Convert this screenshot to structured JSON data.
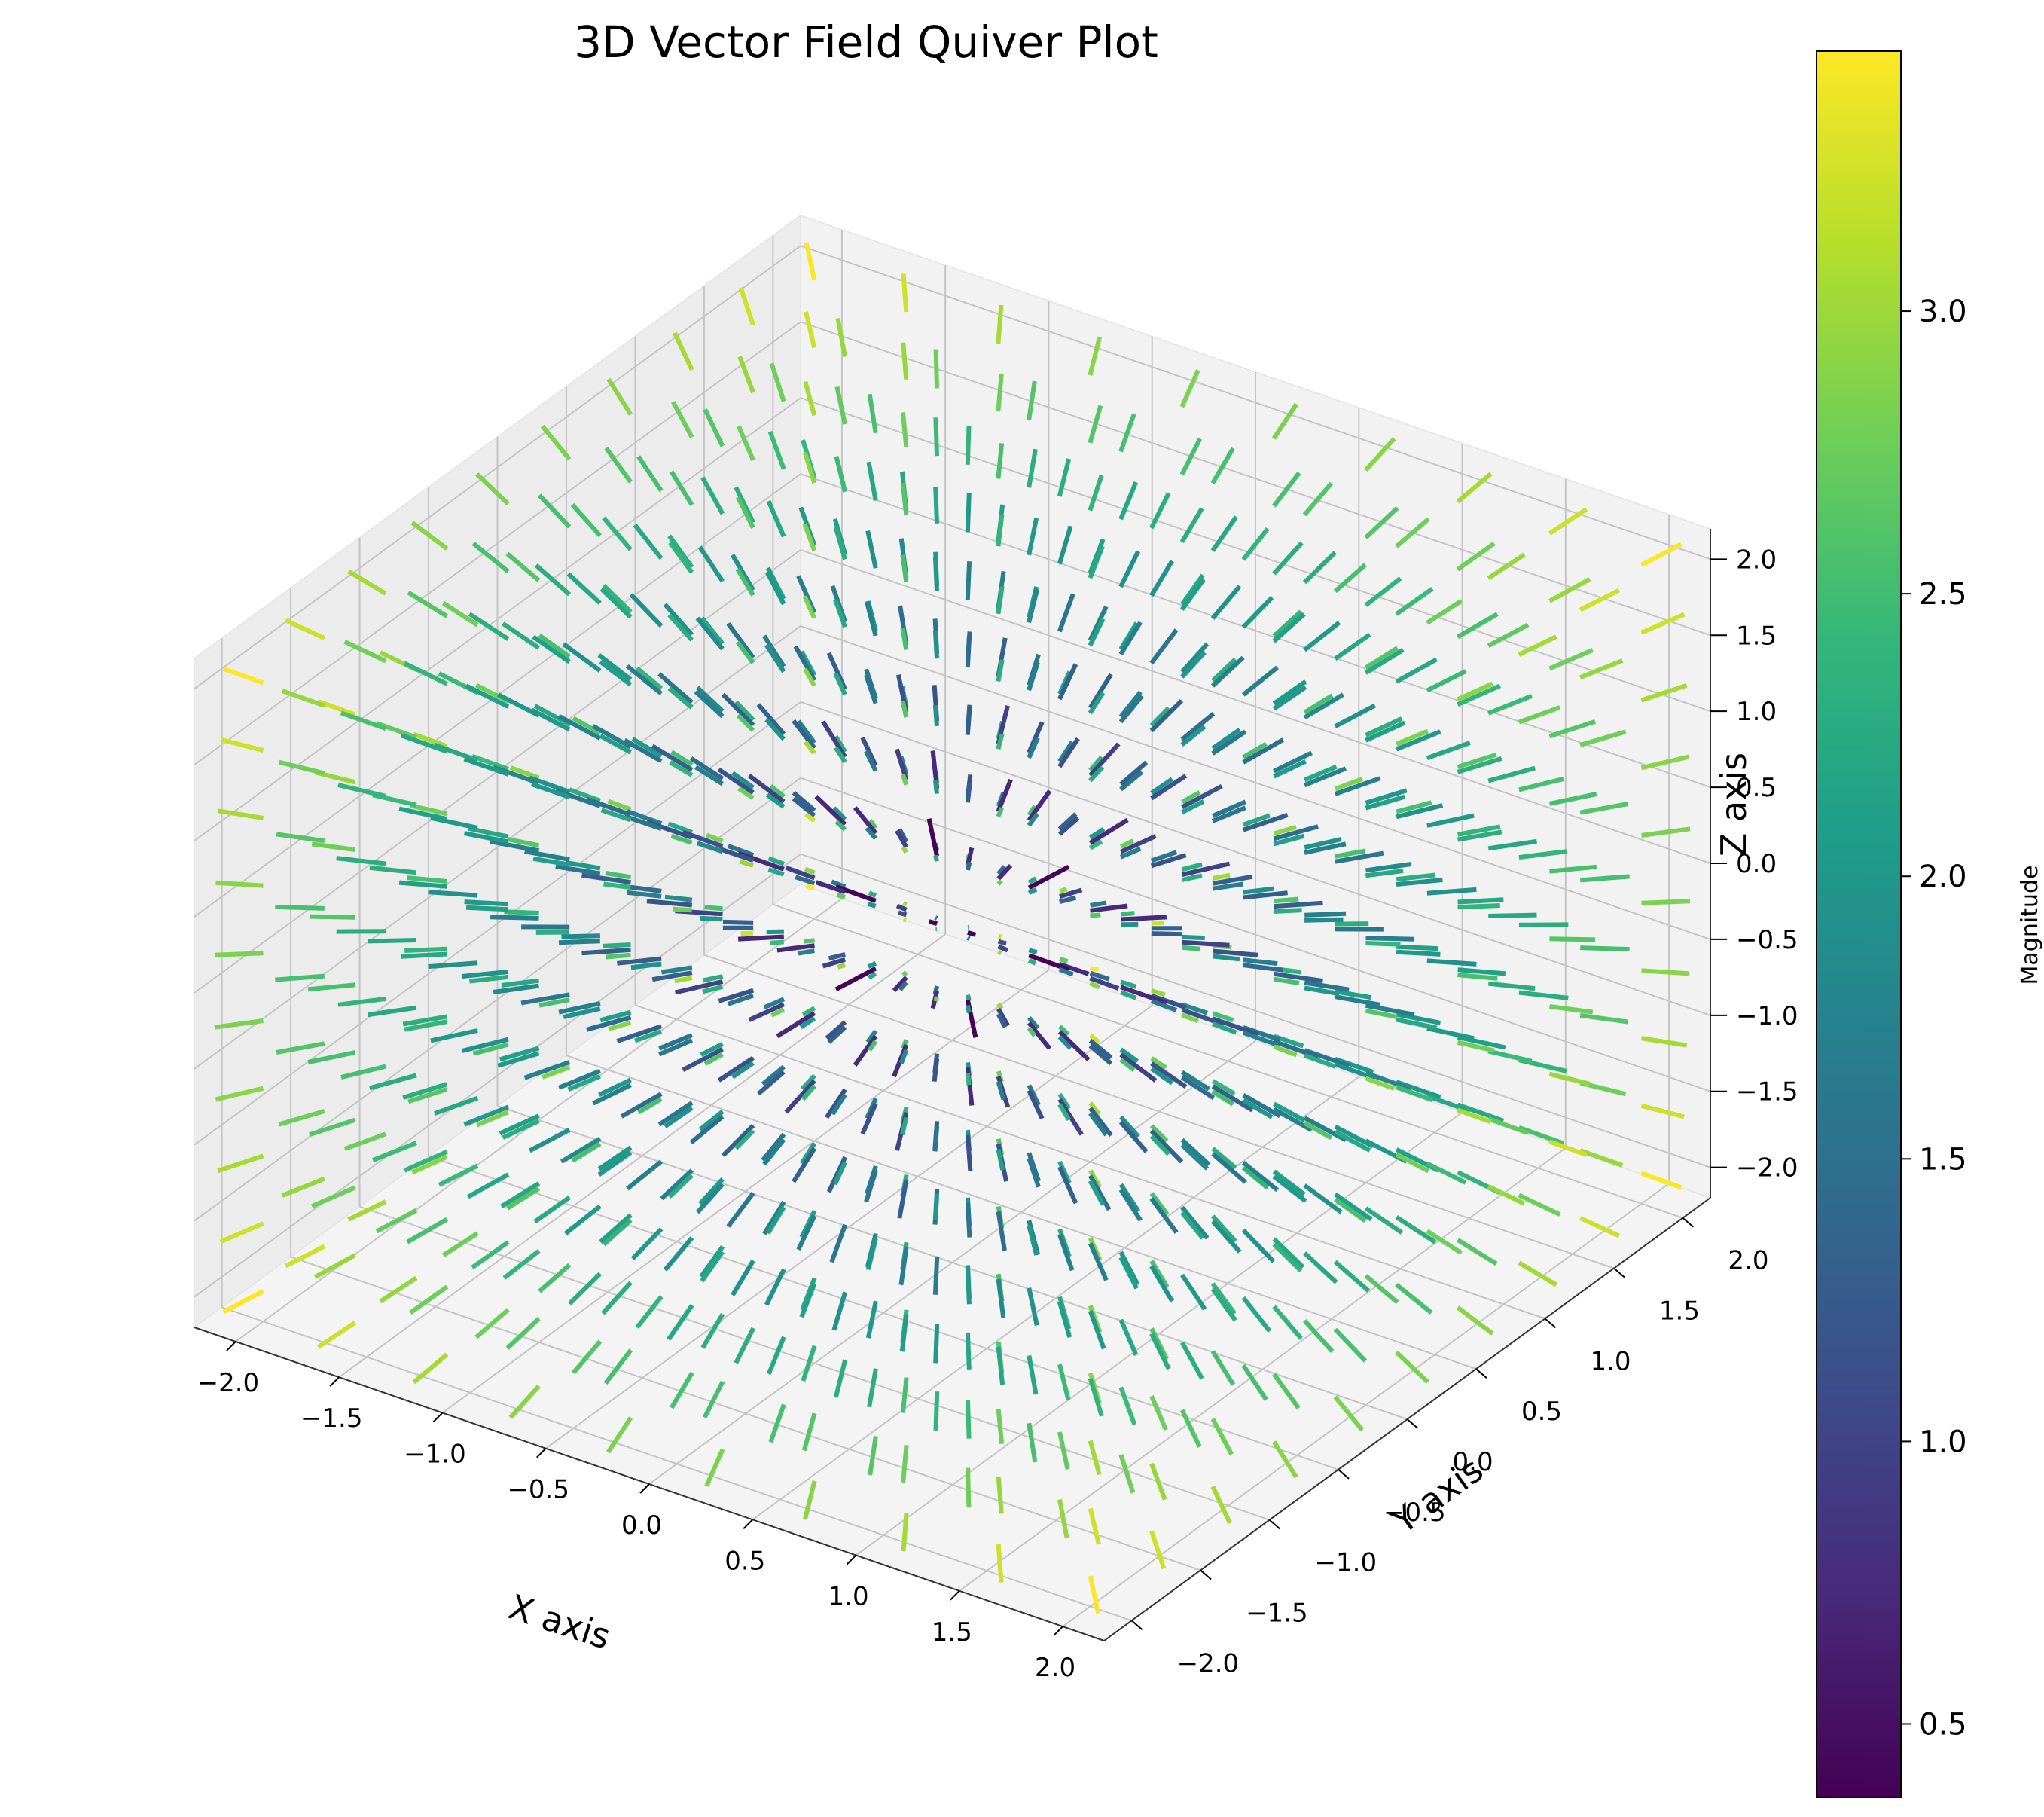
{
  "chart_data": {
    "type": "quiver3d",
    "title": "3D Vector Field Quiver Plot",
    "xlabel": "X axis",
    "ylabel": "Y axis",
    "zlabel": "Z axis",
    "colorbar_label": "Magnitude",
    "grid": true,
    "xlim": [
      -2.2,
      2.2
    ],
    "ylim": [
      -2.2,
      2.2
    ],
    "zlim": [
      -2.2,
      2.2
    ],
    "x_ticks": [
      "−2.0",
      "−1.5",
      "−1.0",
      "−0.5",
      "0.0",
      "0.5",
      "1.0",
      "1.5",
      "2.0"
    ],
    "y_ticks": [
      "−2.0",
      "−1.5",
      "−1.0",
      "−0.5",
      "0.0",
      "0.5",
      "1.0",
      "1.5",
      "2.0"
    ],
    "z_ticks": [
      "−2.0",
      "−1.5",
      "−1.0",
      "−0.5",
      "0.0",
      "0.5",
      "1.0",
      "1.5",
      "2.0"
    ],
    "tick_values": [
      -2.0,
      -1.5,
      -1.0,
      -0.5,
      0.0,
      0.5,
      1.0,
      1.5,
      2.0
    ],
    "colorbar_range": [
      0.37,
      3.46
    ],
    "colorbar_ticks": [
      "0.5",
      "1.0",
      "1.5",
      "2.0",
      "2.5",
      "3.0"
    ],
    "colorbar_tick_values": [
      0.5,
      1.0,
      1.5,
      2.0,
      2.5,
      3.0
    ],
    "colormap": "viridis",
    "colormap_stops": [
      "#440154",
      "#482878",
      "#3e4989",
      "#31688e",
      "#26828e",
      "#1f9e89",
      "#35b779",
      "#6ece58",
      "#b5de2b",
      "#fde725"
    ],
    "field": {
      "grid_min": -2.0,
      "grid_max": 2.0,
      "grid_points": 10,
      "vector": "u=x, v=y, w=z (radial, outward)",
      "arrow_length": 0.2,
      "normalize": true
    }
  }
}
